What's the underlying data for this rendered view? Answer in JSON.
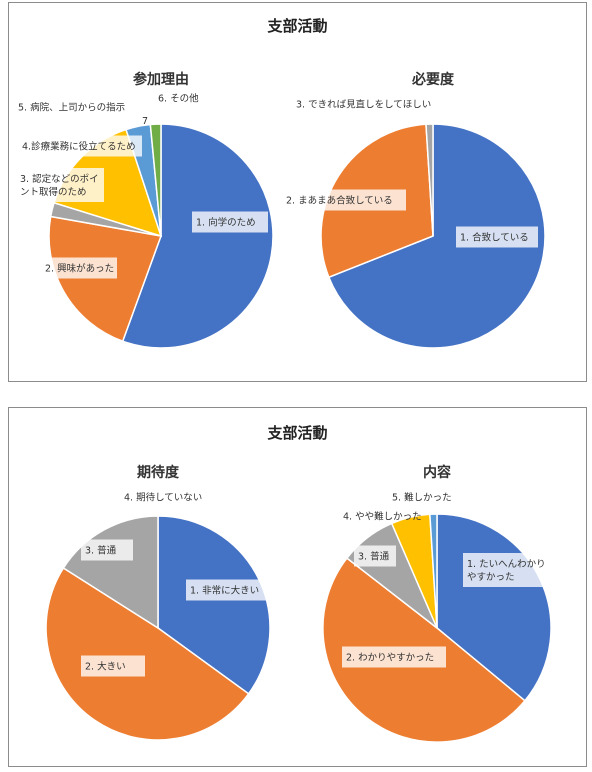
{
  "panels": [
    {
      "title": "支部活動"
    },
    {
      "title": "支部活動"
    }
  ],
  "chart_data": [
    {
      "type": "pie",
      "title": "参加理由",
      "categories": [
        "1. 向学のため",
        "2. 興味があった",
        "3. 認定などのポイント取得のため",
        "4.診療業務に役立てるため",
        "5. 病院、上司からの指示",
        "6. その他"
      ],
      "values": [
        55,
        22,
        2,
        15,
        3.5,
        1.5
      ],
      "colors": [
        "#4472C4",
        "#ED7D31",
        "#A5A5A5",
        "#FFC000",
        "#5B9BD5",
        "#70AD47"
      ],
      "label_lines": [
        [
          "1. 向学のため"
        ],
        [
          "2. 興味があった"
        ],
        [
          "3. 認定などのポイ",
          "ント取得のため"
        ],
        [
          "4.診療業務に役立てるため"
        ],
        [
          "5. 病院、上司からの指示"
        ],
        [
          "6. その他"
        ]
      ],
      "small_tag": "7"
    },
    {
      "type": "pie",
      "title": "必要度",
      "categories": [
        "1. 合致している",
        "2. まあまあ合致している",
        "3. できれば見直しをしてほしい"
      ],
      "values": [
        69,
        30,
        1
      ],
      "colors": [
        "#4472C4",
        "#ED7D31",
        "#A5A5A5"
      ],
      "label_lines": [
        [
          "1. 合致している"
        ],
        [
          "2. まあまあ合致している"
        ],
        [
          "3. できれば見直しをしてほしい"
        ]
      ]
    },
    {
      "type": "pie",
      "title": "期待度",
      "categories": [
        "1. 非常に大きい",
        "2. 大きい",
        "3. 普通",
        "4. 期待していない"
      ],
      "values": [
        35,
        49,
        16,
        0
      ],
      "colors": [
        "#4472C4",
        "#ED7D31",
        "#A5A5A5",
        "#FFC000"
      ],
      "label_lines": [
        [
          "1. 非常に大きい"
        ],
        [
          "2. 大きい"
        ],
        [
          "3. 普通"
        ],
        [
          "4. 期待していない"
        ]
      ]
    },
    {
      "type": "pie",
      "title": "内容",
      "categories": [
        "1. たいへんわかりやすかった",
        "2. わかりやすかった",
        "3. 普通",
        "4. やや難しかった",
        "5. 難しかった"
      ],
      "values": [
        36,
        49.5,
        8,
        5.5,
        1
      ],
      "colors": [
        "#4472C4",
        "#ED7D31",
        "#A5A5A5",
        "#FFC000",
        "#5B9BD5"
      ],
      "label_lines": [
        [
          "1. たいへんわかり",
          "やすかった"
        ],
        [
          "2. わかりやすかった"
        ],
        [
          "3. 普通"
        ],
        [
          "4. やや難しかった"
        ],
        [
          "5. 難しかった"
        ]
      ]
    }
  ]
}
